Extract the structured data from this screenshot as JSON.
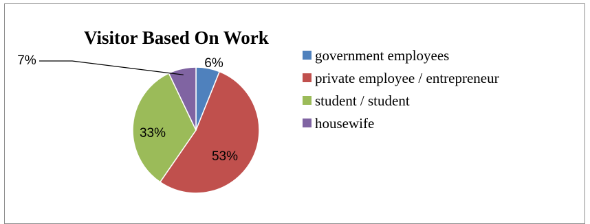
{
  "chart_data": {
    "type": "pie",
    "title": "Visitor Based On Work",
    "categories": [
      "government employees",
      "private employee / entrepreneur",
      "student / student",
      "housewife"
    ],
    "values": [
      6,
      53,
      33,
      7
    ],
    "labels": [
      "6%",
      "53%",
      "33%",
      "7%"
    ],
    "colors": [
      "#4f81bd",
      "#c0504d",
      "#9bbb59",
      "#8064a2"
    ],
    "legend": "right"
  }
}
